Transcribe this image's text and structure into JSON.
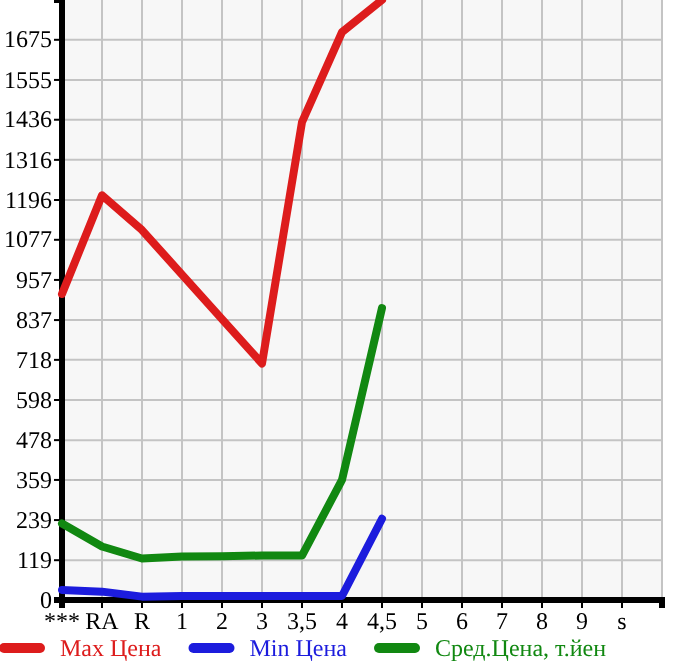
{
  "chart_data": {
    "type": "line",
    "categories": [
      "***",
      "RA",
      "R",
      "1",
      "2",
      "3",
      "3,5",
      "4",
      "4,5",
      "5",
      "6",
      "7",
      "8",
      "9",
      "s"
    ],
    "series": [
      {
        "name": "Max Цена",
        "color": "#dd1c1c",
        "values": [
          915,
          1210,
          1106,
          973,
          840,
          707,
          1429,
          1698,
          1794,
          null,
          null,
          null,
          null,
          null,
          null
        ]
      },
      {
        "name": "Min Цена",
        "color": "#1c1cdd",
        "values": [
          30,
          25,
          10,
          12,
          12,
          12,
          12,
          12,
          243,
          null,
          null,
          null,
          null,
          null,
          null
        ]
      },
      {
        "name": "Сред.Цена, т.йен",
        "color": "#118811",
        "values": [
          229,
          160,
          124,
          130,
          131,
          133,
          133,
          359,
          873,
          null,
          null,
          null,
          null,
          null,
          null
        ]
      }
    ],
    "ylim": [
      0,
      1794
    ],
    "yticks": [
      0,
      119,
      239,
      359,
      478,
      598,
      718,
      837,
      957,
      1077,
      1196,
      1316,
      1436,
      1555,
      1675
    ],
    "grid": true,
    "legend": "bottom",
    "marker": "none",
    "line_style": "solid"
  }
}
